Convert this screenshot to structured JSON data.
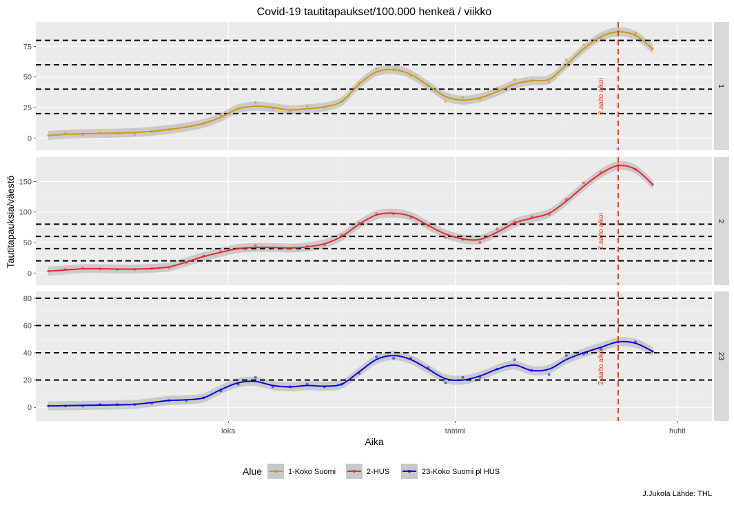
{
  "title": "Covid-19 tautitapaukset/100.000 henkeä / viikko",
  "xlabel": "Aika",
  "ylabel": "Tautitapauksia/väestö",
  "caption": "J.Jukola  Lähde: THL",
  "legend": {
    "title": "Alue",
    "position": "bottom",
    "items": [
      {
        "label": "1-Koko Suomi",
        "color": "#CC9B00"
      },
      {
        "label": "2-HUS",
        "color": "#E8262A"
      },
      {
        "label": "23-Koko Suomi pl HUS",
        "color": "#0000EE"
      }
    ]
  },
  "chart_data": {
    "type": "line",
    "x_axis": {
      "type": "date",
      "range": [
        "2020-07-15",
        "2021-04-15"
      ],
      "ticks": [
        {
          "date": "2020-10-01",
          "label": "loka"
        },
        {
          "date": "2021-01-01",
          "label": "tammi"
        },
        {
          "date": "2021-04-01",
          "label": "huhti"
        }
      ]
    },
    "grid": true,
    "vline": {
      "date": "2021-03-08",
      "label": "2.aalto alkoi",
      "color": "#FF3300"
    },
    "panels": [
      {
        "strip": "1",
        "ylim": [
          -10,
          95
        ],
        "yticks": [
          0,
          25,
          50,
          75
        ],
        "hlines": [
          20,
          40,
          60,
          80
        ],
        "series": {
          "name": "1-Koko Suomi",
          "color": "#CC9B00",
          "x": [
            "2020-07-20",
            "2020-07-27",
            "2020-08-03",
            "2020-08-10",
            "2020-08-17",
            "2020-08-24",
            "2020-08-31",
            "2020-09-07",
            "2020-09-14",
            "2020-09-21",
            "2020-09-28",
            "2020-10-05",
            "2020-10-12",
            "2020-10-19",
            "2020-10-26",
            "2020-11-02",
            "2020-11-09",
            "2020-11-16",
            "2020-11-23",
            "2020-11-30",
            "2020-12-07",
            "2020-12-14",
            "2020-12-21",
            "2020-12-28",
            "2021-01-04",
            "2021-01-11",
            "2021-01-18",
            "2021-01-25",
            "2021-02-01",
            "2021-02-08",
            "2021-02-15",
            "2021-02-22",
            "2021-03-01",
            "2021-03-08",
            "2021-03-15",
            "2021-03-22"
          ],
          "y": [
            2,
            4,
            3,
            4,
            4,
            3,
            5,
            7,
            9,
            12,
            19,
            24,
            29,
            24,
            22,
            26,
            25,
            30,
            45,
            57,
            56,
            51,
            43,
            30,
            33,
            32,
            41,
            48,
            47,
            46,
            64,
            76,
            82,
            88,
            86,
            73
          ],
          "smooth": [
            2,
            3,
            3.5,
            3.8,
            4,
            4.5,
            5.5,
            7,
            9,
            12,
            17,
            24,
            26,
            25,
            23,
            24,
            25.5,
            30,
            44,
            54,
            56,
            52,
            43,
            34,
            31,
            33,
            38,
            44,
            47,
            48,
            60,
            73,
            83,
            87,
            84,
            73
          ]
        }
      },
      {
        "strip": "2",
        "ylim": [
          -20,
          190
        ],
        "yticks": [
          0,
          50,
          100,
          150
        ],
        "hlines": [
          20,
          40,
          60,
          80
        ],
        "series": {
          "name": "2-HUS",
          "color": "#E8262A",
          "x": [
            "2020-07-20",
            "2020-07-27",
            "2020-08-03",
            "2020-08-10",
            "2020-08-17",
            "2020-08-24",
            "2020-08-31",
            "2020-09-07",
            "2020-09-14",
            "2020-09-21",
            "2020-09-28",
            "2020-10-05",
            "2020-10-12",
            "2020-10-19",
            "2020-10-26",
            "2020-11-02",
            "2020-11-09",
            "2020-11-16",
            "2020-11-23",
            "2020-11-30",
            "2020-12-07",
            "2020-12-14",
            "2020-12-21",
            "2020-12-28",
            "2021-01-04",
            "2021-01-11",
            "2021-01-18",
            "2021-01-25",
            "2021-02-01",
            "2021-02-08",
            "2021-02-15",
            "2021-02-22",
            "2021-03-01",
            "2021-03-08",
            "2021-03-15",
            "2021-03-22"
          ],
          "y": [
            3,
            6,
            8,
            7,
            6,
            6,
            7,
            9,
            17,
            28,
            35,
            40,
            45,
            41,
            40,
            44,
            46,
            62,
            82,
            97,
            97,
            91,
            78,
            58,
            55,
            50,
            72,
            84,
            92,
            96,
            121,
            148,
            165,
            177,
            170,
            145
          ],
          "smooth": [
            3,
            5,
            7,
            7,
            6.5,
            6.5,
            7.5,
            10,
            18,
            27,
            34,
            40,
            42,
            42,
            41,
            43,
            48,
            60,
            80,
            95,
            98,
            93,
            78,
            64,
            56,
            55,
            67,
            82,
            90,
            98,
            118,
            142,
            163,
            176,
            170,
            145
          ]
        }
      },
      {
        "strip": "23",
        "ylim": [
          -10,
          85
        ],
        "yticks": [
          0,
          20,
          40,
          60,
          80
        ],
        "hlines": [
          20,
          40,
          60,
          80
        ],
        "series": {
          "name": "23-Koko Suomi pl HUS",
          "color": "#0000EE",
          "x": [
            "2020-07-20",
            "2020-07-27",
            "2020-08-03",
            "2020-08-10",
            "2020-08-17",
            "2020-08-24",
            "2020-08-31",
            "2020-09-07",
            "2020-09-14",
            "2020-09-21",
            "2020-09-28",
            "2020-10-05",
            "2020-10-12",
            "2020-10-19",
            "2020-10-26",
            "2020-11-02",
            "2020-11-09",
            "2020-11-16",
            "2020-11-23",
            "2020-11-30",
            "2020-12-07",
            "2020-12-14",
            "2020-12-21",
            "2020-12-28",
            "2021-01-04",
            "2021-01-11",
            "2021-01-18",
            "2021-01-25",
            "2021-02-01",
            "2021-02-08",
            "2021-02-15",
            "2021-02-22",
            "2021-03-01",
            "2021-03-08",
            "2021-03-15",
            "2021-03-22"
          ],
          "y": [
            1,
            1,
            1,
            2,
            2,
            2,
            3,
            5,
            5,
            7,
            12,
            17,
            22,
            15,
            15,
            17,
            15,
            17,
            25,
            37,
            36,
            36,
            29,
            18,
            22,
            22,
            28,
            35,
            27,
            24,
            38,
            39,
            43,
            48,
            48,
            41
          ],
          "smooth": [
            1,
            1.2,
            1.4,
            1.6,
            1.8,
            2.2,
            3.5,
            5,
            5.5,
            7,
            13,
            18,
            19,
            16,
            15,
            16,
            15.5,
            17,
            26,
            35,
            38,
            35,
            28,
            21,
            20,
            23,
            28,
            31,
            27,
            28,
            35,
            40,
            44,
            48,
            47,
            41
          ]
        }
      }
    ]
  }
}
